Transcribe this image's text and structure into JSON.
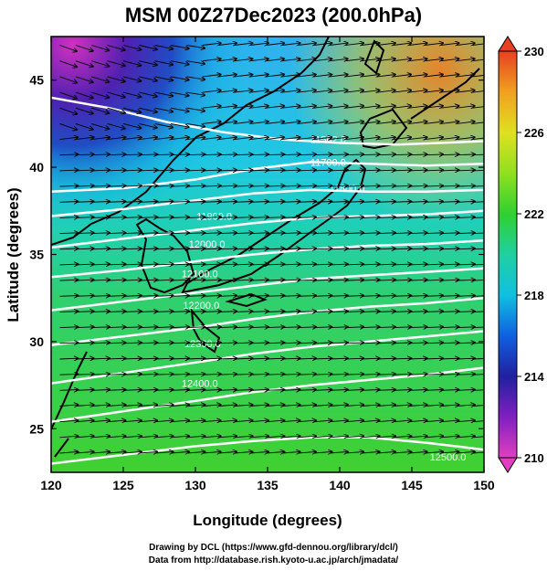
{
  "title": "MSM 00Z27Dec2023 (200.0hPa)",
  "x_axis": {
    "label": "Longitude (degrees)",
    "ticks": [
      "120",
      "125",
      "130",
      "135",
      "140",
      "145",
      "150"
    ],
    "range": [
      120,
      150
    ]
  },
  "y_axis": {
    "label": "Latitude  (degrees)",
    "ticks": [
      "25",
      "30",
      "35",
      "40",
      "45"
    ],
    "range": [
      22.5,
      47.5
    ]
  },
  "colorbar": {
    "ticks": [
      "230",
      "226",
      "222",
      "218",
      "214",
      "210"
    ],
    "range": [
      210,
      230
    ],
    "colors": [
      "#e040c0",
      "#8020c0",
      "#2020a0",
      "#1060e0",
      "#10c0e0",
      "#20d0a0",
      "#30d030",
      "#90e020",
      "#e0e020",
      "#f0a020",
      "#e84020"
    ]
  },
  "contours": [
    {
      "label": "11562.0"
    },
    {
      "label": "11700.0"
    },
    {
      "label": "11800.0"
    },
    {
      "label": "11900.0"
    },
    {
      "label": "12000.0"
    },
    {
      "label": "12100.0"
    },
    {
      "label": "12200.0"
    },
    {
      "label": "12300.0"
    },
    {
      "label": "12400.0"
    },
    {
      "label": "12500.0"
    }
  ],
  "credits": {
    "line1": "Drawing by DCL (https://www.gfd-dennou.org/library/dcl/)",
    "line2": "Data from http://database.rish.kyoto-u.ac.jp/arch/jmadata/"
  }
}
